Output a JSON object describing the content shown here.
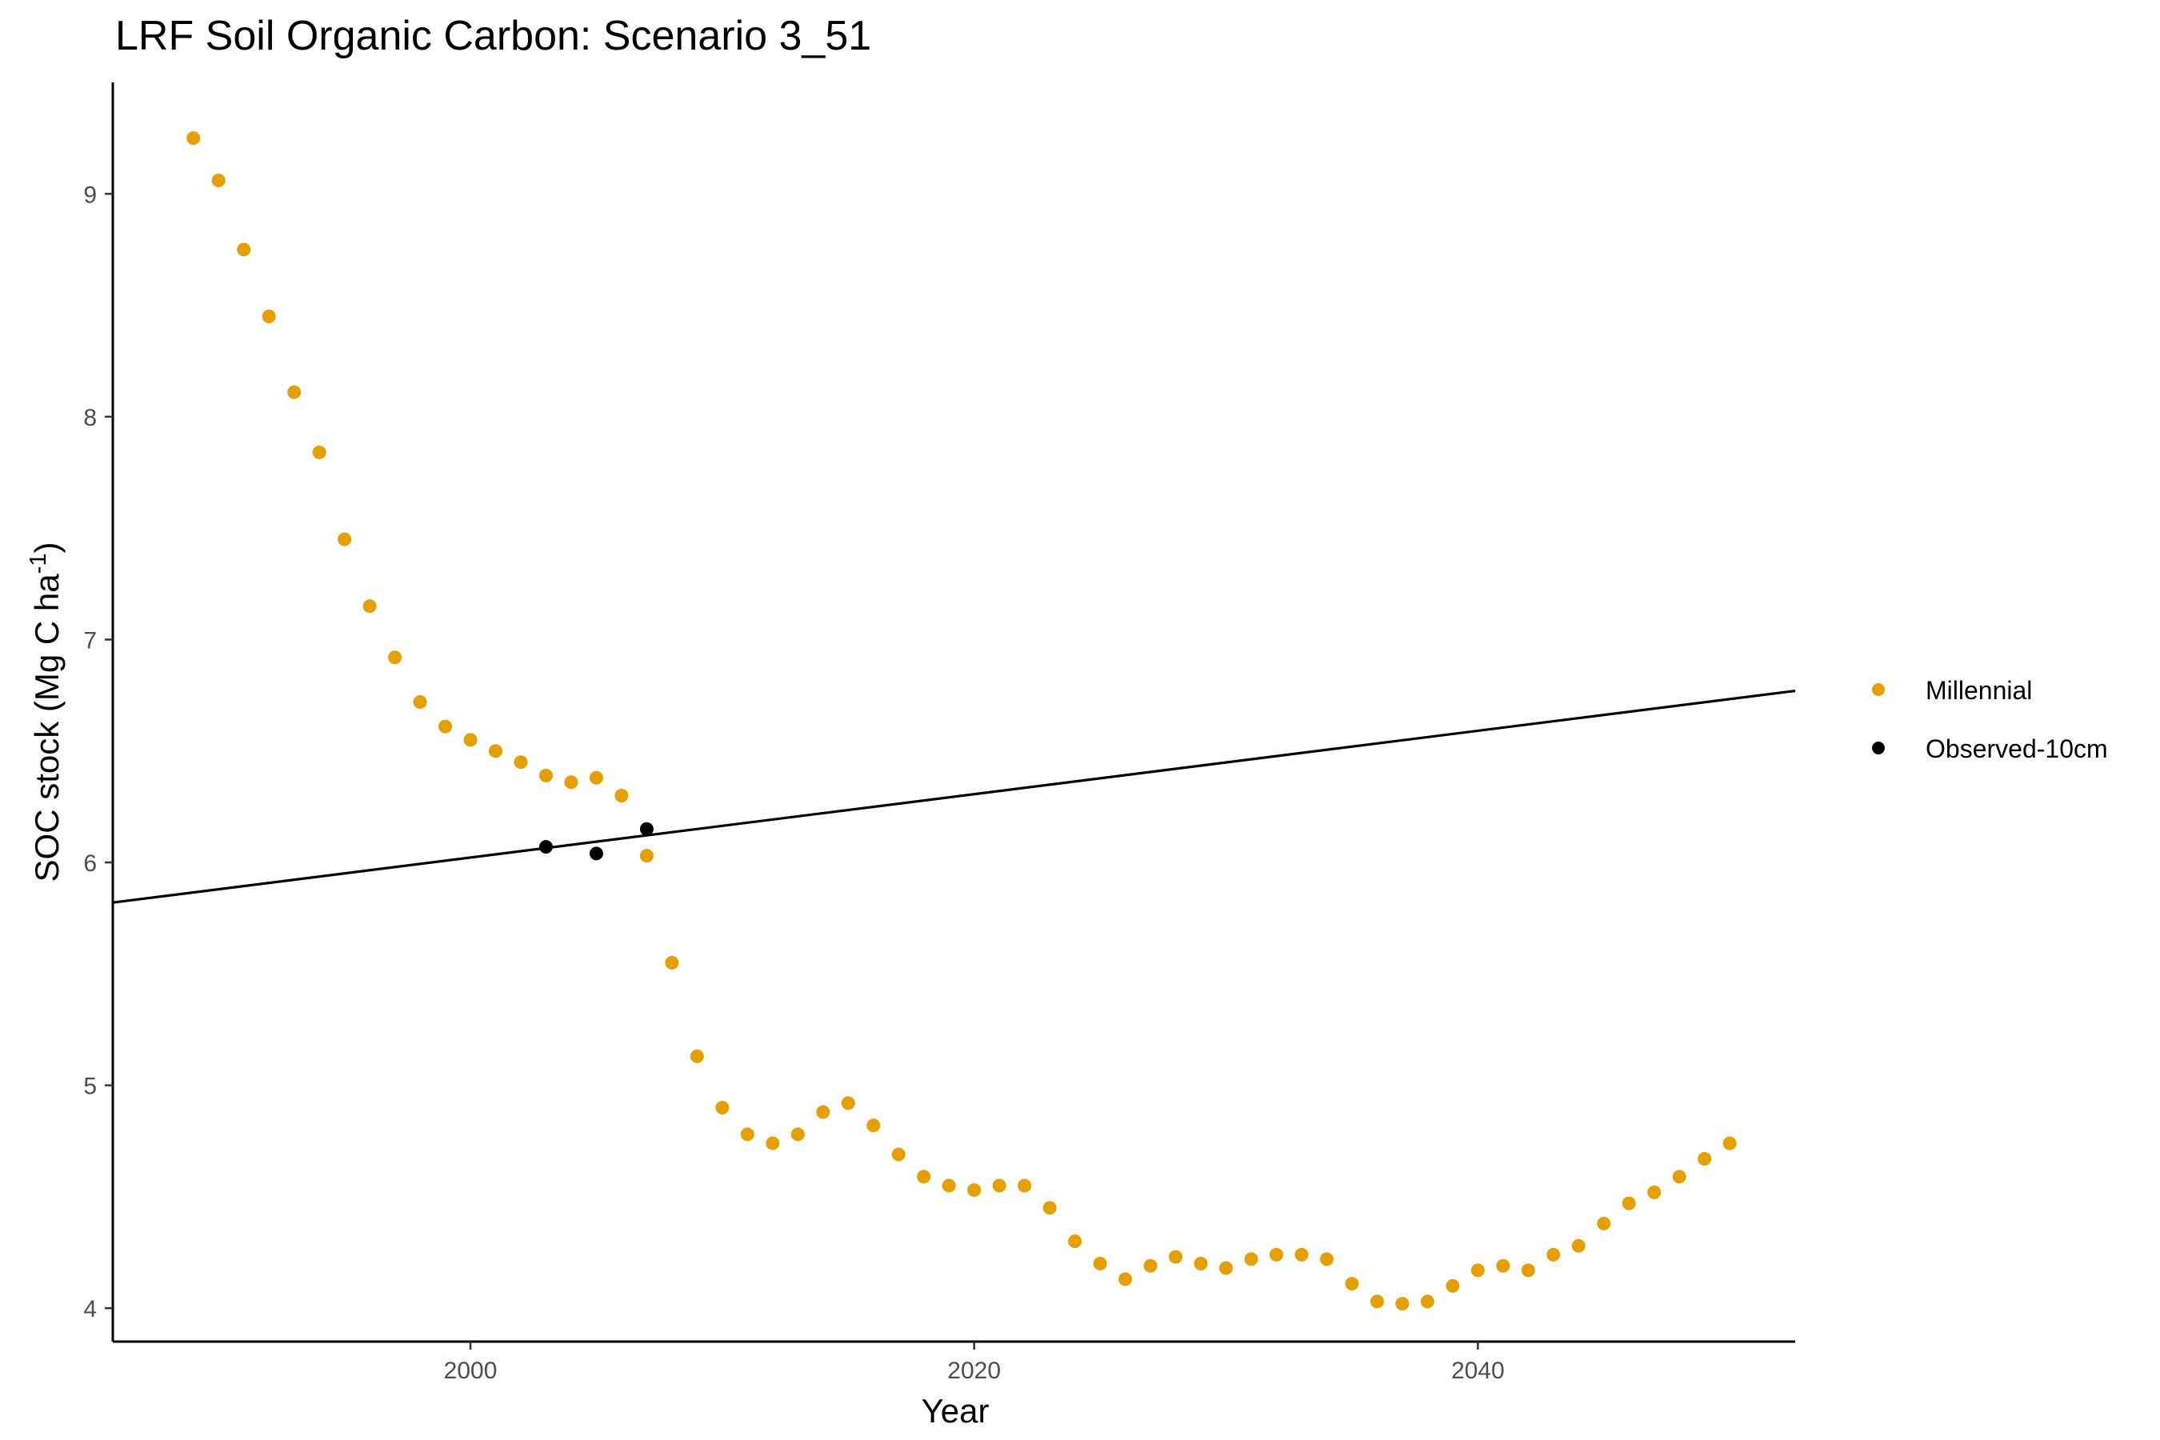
{
  "chart_data": {
    "type": "scatter",
    "title": "LRF Soil Organic Carbon: Scenario  3_51",
    "xlabel": "Year",
    "ylabel": {
      "main": "SOC stock (Mg C ha",
      "superscript": "-1",
      "close": ")"
    },
    "xlim": [
      1985.8,
      2052.6
    ],
    "ylim": [
      3.85,
      9.5
    ],
    "x_ticks": [
      2000,
      2020,
      2040
    ],
    "y_ticks": [
      4,
      5,
      6,
      7,
      8,
      9
    ],
    "grid": false,
    "legend_position": "right",
    "colors": {
      "millennial": "#E69F00",
      "observed": "#000000",
      "trend": "#000000"
    },
    "series": [
      {
        "name": "Millennial",
        "color": "#E69F00",
        "x": [
          1989,
          1990,
          1991,
          1992,
          1993,
          1994,
          1995,
          1996,
          1997,
          1998,
          1999,
          2000,
          2001,
          2002,
          2003,
          2004,
          2005,
          2006,
          2007,
          2008,
          2009,
          2010,
          2011,
          2012,
          2013,
          2014,
          2015,
          2016,
          2017,
          2018,
          2019,
          2020,
          2021,
          2022,
          2023,
          2024,
          2025,
          2026,
          2027,
          2028,
          2029,
          2030,
          2031,
          2032,
          2033,
          2034,
          2035,
          2036,
          2037,
          2038,
          2039,
          2040,
          2041,
          2042,
          2043,
          2044,
          2045,
          2046,
          2047,
          2048,
          2049,
          2050
        ],
        "y": [
          9.25,
          9.06,
          8.75,
          8.45,
          8.11,
          7.84,
          7.45,
          7.15,
          6.92,
          6.72,
          6.61,
          6.55,
          6.5,
          6.45,
          6.39,
          6.36,
          6.38,
          6.3,
          6.03,
          5.55,
          5.13,
          4.9,
          4.78,
          4.74,
          4.78,
          4.88,
          4.92,
          4.82,
          4.69,
          4.59,
          4.55,
          4.53,
          4.55,
          4.55,
          4.45,
          4.3,
          4.2,
          4.13,
          4.19,
          4.23,
          4.2,
          4.18,
          4.22,
          4.24,
          4.24,
          4.22,
          4.11,
          4.03,
          4.02,
          4.03,
          4.1,
          4.17,
          4.19,
          4.17,
          4.24,
          4.28,
          4.38,
          4.47,
          4.52,
          4.59,
          4.67,
          4.74
        ]
      },
      {
        "name": "Observed-10cm",
        "color": "#000000",
        "x": [
          2003,
          2005,
          2007
        ],
        "y": [
          6.07,
          6.04,
          6.15
        ]
      }
    ],
    "trend_line": {
      "x": [
        1985.8,
        2052.6
      ],
      "y": [
        5.82,
        6.77
      ]
    }
  }
}
